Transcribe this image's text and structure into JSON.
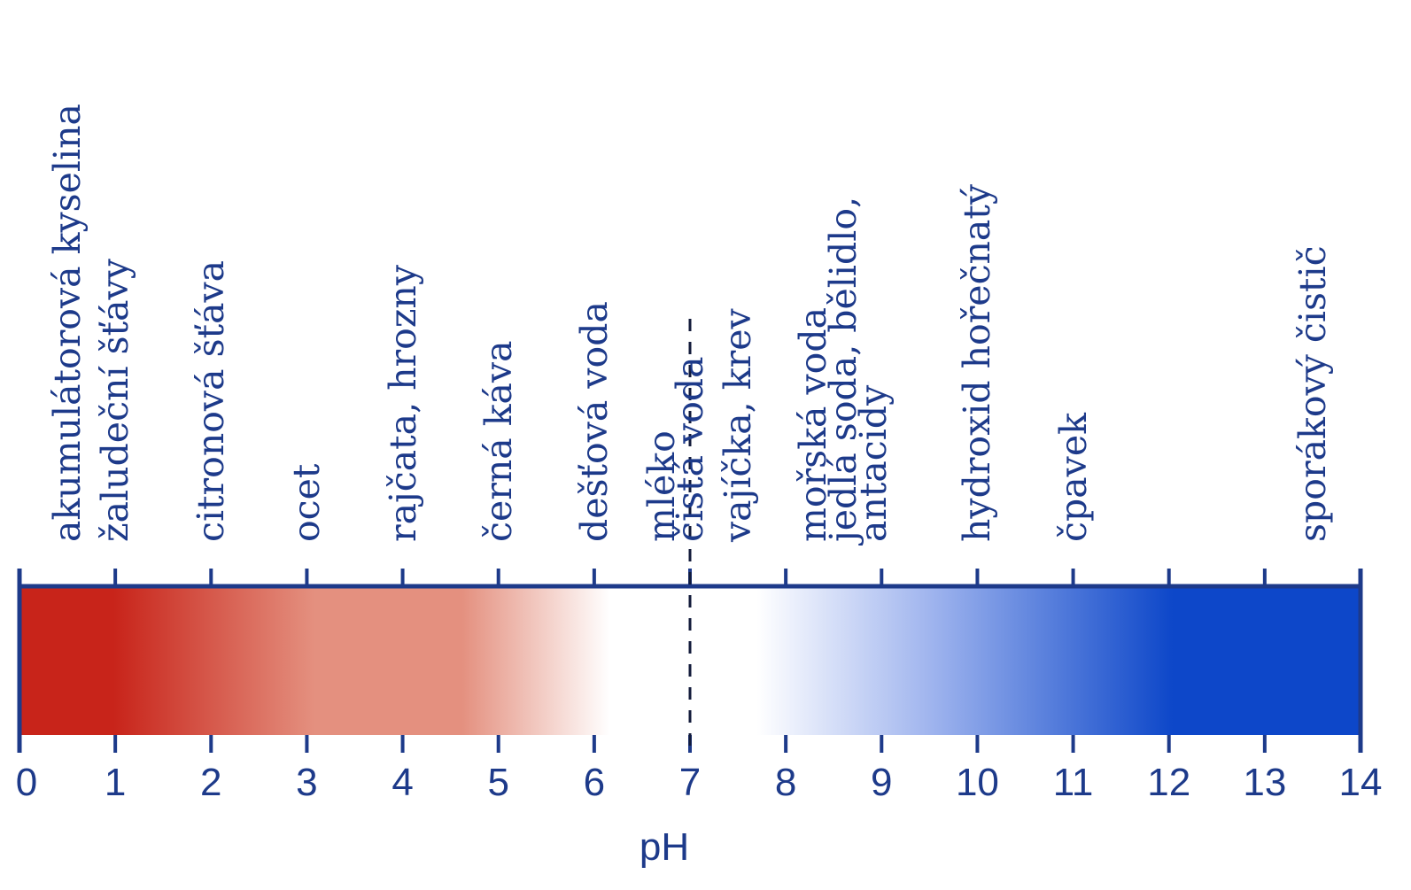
{
  "chart_data": {
    "type": "ph-scale",
    "xlabel": "pH",
    "xlim": [
      0,
      14
    ],
    "ticks": [
      "0",
      "1",
      "2",
      "3",
      "4",
      "5",
      "6",
      "7",
      "8",
      "9",
      "10",
      "11",
      "12",
      "13",
      "14"
    ],
    "neutral_ph": 7,
    "gradient_colors": {
      "acid": "#c8241a",
      "mid_acid": "#e4907f",
      "neutral": "#ffffff",
      "mid_base": "#9fb4ee",
      "base": "#0d47c9"
    },
    "accent_color": "#1d3a8a",
    "substances": [
      {
        "ph": 0.5,
        "lines": [
          "akumulátorová kyselina"
        ]
      },
      {
        "ph": 1,
        "lines": [
          "žaludeční šťávy"
        ]
      },
      {
        "ph": 2,
        "lines": [
          "citronová šťáva"
        ]
      },
      {
        "ph": 3,
        "lines": [
          "ocet"
        ]
      },
      {
        "ph": 4,
        "lines": [
          "rajčata, hrozny"
        ]
      },
      {
        "ph": 5,
        "lines": [
          "černá káva"
        ]
      },
      {
        "ph": 6,
        "lines": [
          "dešťová voda"
        ]
      },
      {
        "ph": 6.7,
        "lines": [
          "mléko"
        ]
      },
      {
        "ph": 7,
        "lines": [
          "čistá voda"
        ]
      },
      {
        "ph": 7.5,
        "lines": [
          "vajíčka, krev"
        ]
      },
      {
        "ph": 8.6,
        "lines": [
          "mořská voda",
          "jedlá soda, bělidlo,",
          "antacidy"
        ]
      },
      {
        "ph": 10,
        "lines": [
          "hydroxid hořečnatý"
        ]
      },
      {
        "ph": 11,
        "lines": [
          "čpavek"
        ]
      },
      {
        "ph": 13.5,
        "lines": [
          "sporákový čistič"
        ]
      }
    ]
  }
}
